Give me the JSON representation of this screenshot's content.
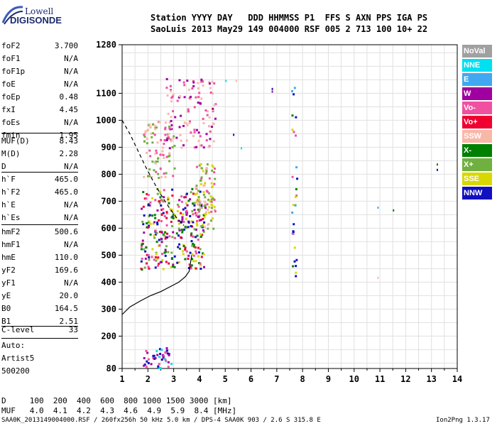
{
  "logo": {
    "top": "Lowell",
    "bottom": "DIGISONDE"
  },
  "header": {
    "row1": "Station YYYY DAY   DDD HHMMSS P1  FFS S AXN PPS IGA PS",
    "row2": "SaoLuis 2013 May29 149 004000 RSF 005 2 713 100 10+ 22"
  },
  "params": {
    "g1": [
      {
        "name": "foF2",
        "value": "3.700"
      },
      {
        "name": "foF1",
        "value": "N/A"
      },
      {
        "name": "foF1p",
        "value": "N/A"
      },
      {
        "name": "foE",
        "value": "N/A"
      },
      {
        "name": "foEp",
        "value": "0.48"
      },
      {
        "name": "fxI",
        "value": "4.45"
      },
      {
        "name": "foEs",
        "value": "N/A"
      },
      {
        "name": "fmin",
        "value": "1.95"
      }
    ],
    "g2": [
      {
        "name": "MUF(D)",
        "value": "8.43"
      },
      {
        "name": "M(D)",
        "value": "2.28"
      },
      {
        "name": "D",
        "value": "N/A"
      }
    ],
    "g3": [
      {
        "name": "h`F",
        "value": "465.0"
      },
      {
        "name": "h`F2",
        "value": "465.0"
      },
      {
        "name": "h`E",
        "value": "N/A"
      },
      {
        "name": "h`Es",
        "value": "N/A"
      }
    ],
    "g4": [
      {
        "name": "hmF2",
        "value": "500.6"
      },
      {
        "name": "hmF1",
        "value": "N/A"
      },
      {
        "name": "hmE",
        "value": "110.0"
      },
      {
        "name": "yF2",
        "value": "169.6"
      },
      {
        "name": "yF1",
        "value": "N/A"
      },
      {
        "name": "yE",
        "value": "20.0"
      },
      {
        "name": "B0",
        "value": "164.5"
      },
      {
        "name": "B1",
        "value": "2.51"
      }
    ],
    "g5": [
      {
        "name": "C-level",
        "value": "33"
      }
    ]
  },
  "auto": {
    "line1": "Auto:",
    "line2": "Artist5",
    "line3": "500200"
  },
  "legend": [
    {
      "label": "NoVal",
      "color": "#a0a0a0"
    },
    {
      "label": "NNE",
      "color": "#00e0f0"
    },
    {
      "label": "E",
      "color": "#40a8f0"
    },
    {
      "label": "W",
      "color": "#a000a0"
    },
    {
      "label": "Vo-",
      "color": "#f050a0"
    },
    {
      "label": "Vo+",
      "color": "#f00030"
    },
    {
      "label": "SSW",
      "color": "#f8b8a8"
    },
    {
      "label": "X-",
      "color": "#008000"
    },
    {
      "label": "X+",
      "color": "#70b040"
    },
    {
      "label": "SSE",
      "color": "#d8d800"
    },
    {
      "label": "NNW",
      "color": "#1010c0"
    }
  ],
  "bottom": {
    "row1": "D     100  200  400  600  800 1000 1500 3000 [km]",
    "row2": "MUF   4.0  4.1  4.2  4.3  4.6  4.9  5.9  8.4 [MHz]"
  },
  "footer": {
    "left": "SAA0K_2013149004000.RSF / 260fx256h 50 kHz 5.0 km / DPS-4 SAA0K 903 / 2.6 S 315.8 E",
    "right": "Ion2Png 1.3.17"
  },
  "chart_data": {
    "type": "scatter",
    "title": "",
    "xlabel": "",
    "ylabel": "",
    "xlim": [
      1,
      14
    ],
    "ylim": [
      80,
      1280
    ],
    "x_ticks": [
      1,
      2,
      3,
      4,
      5,
      6,
      7,
      8,
      9,
      10,
      11,
      12,
      13,
      14
    ],
    "y_ticks": [
      80,
      200,
      300,
      400,
      500,
      600,
      700,
      800,
      900,
      1000,
      1100,
      1280
    ],
    "series": [
      {
        "name": "Profile",
        "style": "solid",
        "x": [
          1.0,
          1.3,
          1.7,
          2.1,
          2.5,
          2.9,
          3.2,
          3.45,
          3.6,
          3.65,
          3.7
        ],
        "y": [
          280,
          308,
          330,
          350,
          365,
          385,
          400,
          420,
          440,
          470,
          500
        ]
      },
      {
        "name": "F2 trace",
        "style": "dashed",
        "x": [
          1.0,
          1.3,
          1.6,
          1.9,
          2.2,
          2.5,
          2.8,
          3.1,
          3.4
        ],
        "y": [
          1000,
          950,
          890,
          830,
          775,
          725,
          680,
          640,
          610
        ]
      }
    ],
    "echo_regions": [
      {
        "x": [
          1.7,
          4.2
        ],
        "y": [
          450,
          750
        ],
        "colors": [
          "#f00030",
          "#f050a0",
          "#a000a0",
          "#008000",
          "#d8d800",
          "#70b040",
          "#1010c0"
        ],
        "n": 320
      },
      {
        "x": [
          3.8,
          4.6
        ],
        "y": [
          600,
          850
        ],
        "colors": [
          "#d8d800",
          "#f050a0",
          "#70b040",
          "#f8b8a8"
        ],
        "n": 90
      },
      {
        "x": [
          1.8,
          3.0
        ],
        "y": [
          790,
          1000
        ],
        "colors": [
          "#f8b8a8",
          "#f050a0",
          "#70b040"
        ],
        "n": 90
      },
      {
        "x": [
          2.6,
          4.6
        ],
        "y": [
          900,
          1160
        ],
        "colors": [
          "#f8b8a8",
          "#f050a0",
          "#a000a0"
        ],
        "n": 120
      },
      {
        "x": [
          1.8,
          2.9
        ],
        "y": [
          84,
          160
        ],
        "colors": [
          "#1010c0",
          "#a000a0",
          "#00e0f0",
          "#f050a0"
        ],
        "n": 45
      },
      {
        "x": [
          7.55,
          7.75
        ],
        "y": [
          400,
          1130
        ],
        "colors": [
          "#1010c0",
          "#008000",
          "#d8d800",
          "#40a8f0",
          "#f050a0"
        ],
        "n": 30
      }
    ],
    "echo_points": [
      {
        "x": 5.3,
        "y": 950,
        "color": "#1010c0"
      },
      {
        "x": 5.4,
        "y": 1150,
        "color": "#f8b8a8"
      },
      {
        "x": 6.8,
        "y": 1120,
        "color": "#1010c0"
      },
      {
        "x": 6.8,
        "y": 1110,
        "color": "#a000a0"
      },
      {
        "x": 5.0,
        "y": 1150,
        "color": "#00e0f0"
      },
      {
        "x": 10.9,
        "y": 680,
        "color": "#40a8f0"
      },
      {
        "x": 11.5,
        "y": 670,
        "color": "#008000"
      },
      {
        "x": 10.9,
        "y": 420,
        "color": "#f8b8a8"
      },
      {
        "x": 13.2,
        "y": 840,
        "color": "#008000"
      },
      {
        "x": 13.2,
        "y": 820,
        "color": "#1010c0"
      },
      {
        "x": 5.6,
        "y": 900,
        "color": "#00e0f0"
      }
    ]
  }
}
